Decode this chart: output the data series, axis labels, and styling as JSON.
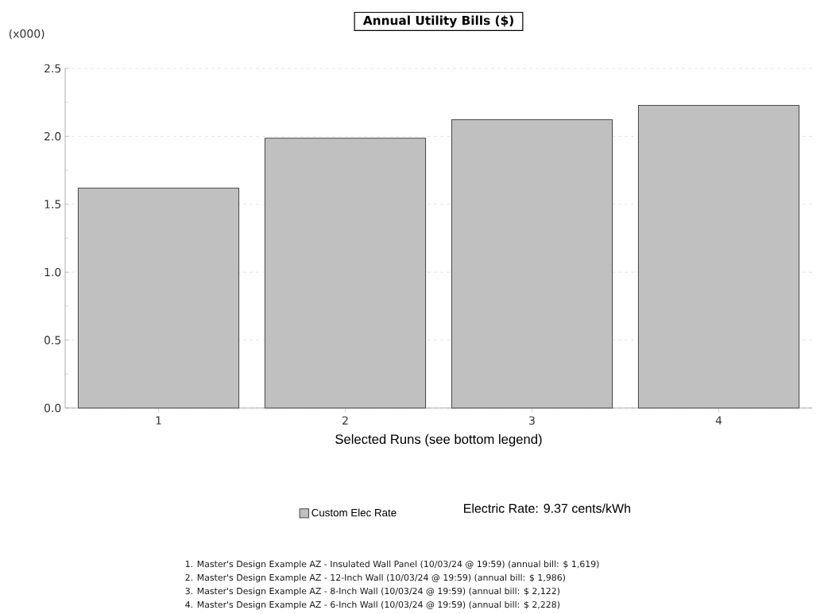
{
  "chart_data": {
    "type": "bar",
    "title": "Annual Utility Bills ($)",
    "ylabel": "(x000)",
    "xlabel": "Selected Runs (see bottom legend)",
    "categories": [
      "1",
      "2",
      "3",
      "4"
    ],
    "series": [
      {
        "name": "Custom Elec Rate",
        "color": "#c0c0c0",
        "values": [
          1.619,
          1.986,
          2.122,
          2.228
        ]
      }
    ],
    "ylim": [
      0,
      2.5
    ],
    "yticks": [
      {
        "value": 0,
        "label": "0.0"
      },
      {
        "value": 0.5,
        "label": "0.5"
      },
      {
        "value": 1,
        "label": "1.0"
      },
      {
        "value": 1.5,
        "label": "1.5"
      },
      {
        "value": 2,
        "label": "2.0"
      },
      {
        "value": 2.5,
        "label": "2.5"
      }
    ],
    "grid": "y",
    "legend": "bottom",
    "annotations": [
      "Electric Rate: 9.37 cents/kWh",
      "1.  Master's Design Example AZ - Insulated Wall Panel  (10/03/24 @ 19:59)  (annual bill: $ 1,619)",
      "2.  Master's Design Example AZ - 12-Inch Wall  (10/03/24 @ 19:59)  (annual bill: $ 1,986)",
      "3.  Master's Design Example AZ - 8-Inch Wall  (10/03/24 @ 19:59)  (annual bill: $ 2,122)",
      "4.  Master's Design Example AZ - 6-Inch Wall  (10/03/24 @ 19:59)  (annual bill: $ 2,228)"
    ]
  }
}
